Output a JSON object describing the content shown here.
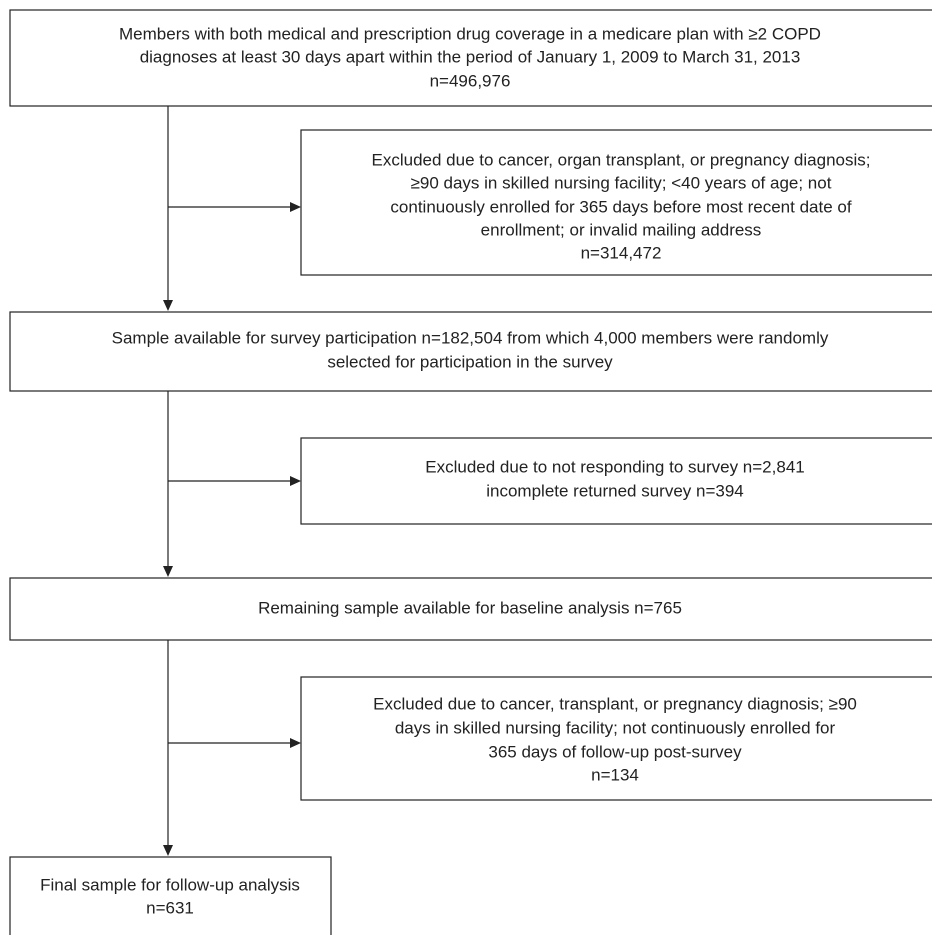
{
  "nodes": [
    {
      "lines": [
        "Members with both medical and prescription drug coverage in a medicare plan with ≥2 COPD",
        "diagnoses at least 30 days apart within the period of January 1, 2009 to March 31, 2013",
        "n=496,976"
      ]
    },
    {
      "lines": [
        "Excluded due to cancer, organ transplant, or pregnancy diagnosis;",
        "≥90 days in skilled nursing facility; <40 years of age; not",
        "continuously enrolled for 365 days before most recent date of",
        "enrollment; or invalid mailing address",
        "n=314,472"
      ]
    },
    {
      "lines": [
        "Sample available for survey participation n=182,504 from which 4,000 members were randomly",
        "selected for participation in the survey"
      ]
    },
    {
      "lines": [
        "Excluded due to not responding to survey n=2,841",
        "incomplete returned survey n=394"
      ]
    },
    {
      "lines": [
        "Remaining sample available for baseline analysis n=765"
      ]
    },
    {
      "lines": [
        "Excluded due to cancer, transplant, or pregnancy diagnosis; ≥90",
        "days in skilled nursing facility; not continuously enrolled for",
        "365 days of follow-up post-survey",
        "n=134"
      ]
    },
    {
      "lines": [
        "Final sample for follow-up analysis",
        "n=631"
      ]
    }
  ]
}
